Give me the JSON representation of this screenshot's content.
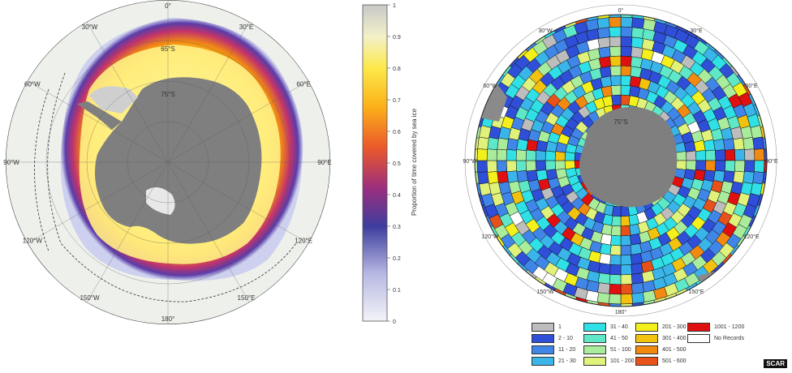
{
  "left_map": {
    "lon_labels": [
      {
        "text": "0°",
        "angle": 0
      },
      {
        "text": "30°E",
        "angle": 30
      },
      {
        "text": "60°E",
        "angle": 60
      },
      {
        "text": "90°E",
        "angle": 90
      },
      {
        "text": "120°E",
        "angle": 120
      },
      {
        "text": "150°E",
        "angle": 150
      },
      {
        "text": "180°",
        "angle": 180
      },
      {
        "text": "150°W",
        "angle": 210
      },
      {
        "text": "120°W",
        "angle": 240
      },
      {
        "text": "90°W",
        "angle": 270
      },
      {
        "text": "60°W",
        "angle": 300
      },
      {
        "text": "30°W",
        "angle": 330
      }
    ],
    "lat_labels": [
      {
        "text": "65°S",
        "lat": 65
      },
      {
        "text": "75°S",
        "lat": 75
      }
    ]
  },
  "colorbar": {
    "label": "Proportion of time covered by sea ice",
    "ticks": [
      "0",
      "0.1",
      "0.2",
      "0.3",
      "0.4",
      "0.5",
      "0.6",
      "0.7",
      "0.8",
      "0.9",
      "1"
    ]
  },
  "right_map": {
    "lon_labels": [
      {
        "text": "0°",
        "angle": 0
      },
      {
        "text": "30°E",
        "angle": 30
      },
      {
        "text": "60°E",
        "angle": 60
      },
      {
        "text": "90°E",
        "angle": 90
      },
      {
        "text": "120°E",
        "angle": 120
      },
      {
        "text": "150°E",
        "angle": 150
      },
      {
        "text": "180°",
        "angle": 180
      },
      {
        "text": "150°W",
        "angle": 210
      },
      {
        "text": "120°W",
        "angle": 240
      },
      {
        "text": "90°W",
        "angle": 270
      },
      {
        "text": "60°W",
        "angle": 300
      },
      {
        "text": "30°W",
        "angle": 330
      }
    ],
    "lat_labels": [
      {
        "text": "75°S",
        "lat": 75
      }
    ]
  },
  "legend": [
    {
      "label": "1",
      "color": "#bdbdbd"
    },
    {
      "label": "2 - 10",
      "color": "#2f4fd8"
    },
    {
      "label": "11 - 20",
      "color": "#3f86e8"
    },
    {
      "label": "21 - 30",
      "color": "#39b5ea"
    },
    {
      "label": "31 - 40",
      "color": "#2fe0e6"
    },
    {
      "label": "41 - 50",
      "color": "#5fe8c8"
    },
    {
      "label": "51 - 100",
      "color": "#a9ec9c"
    },
    {
      "label": "101 - 200",
      "color": "#e0f27a"
    },
    {
      "label": "201 - 300",
      "color": "#f3f01b"
    },
    {
      "label": "301 - 400",
      "color": "#f2c20f"
    },
    {
      "label": "401 - 500",
      "color": "#f28a12"
    },
    {
      "label": "501 - 600",
      "color": "#e8521a"
    },
    {
      "label": "1001 - 1200",
      "color": "#e01010"
    },
    {
      "label": "No Records",
      "color": "#ffffff"
    }
  ],
  "credit": "SCAR"
}
